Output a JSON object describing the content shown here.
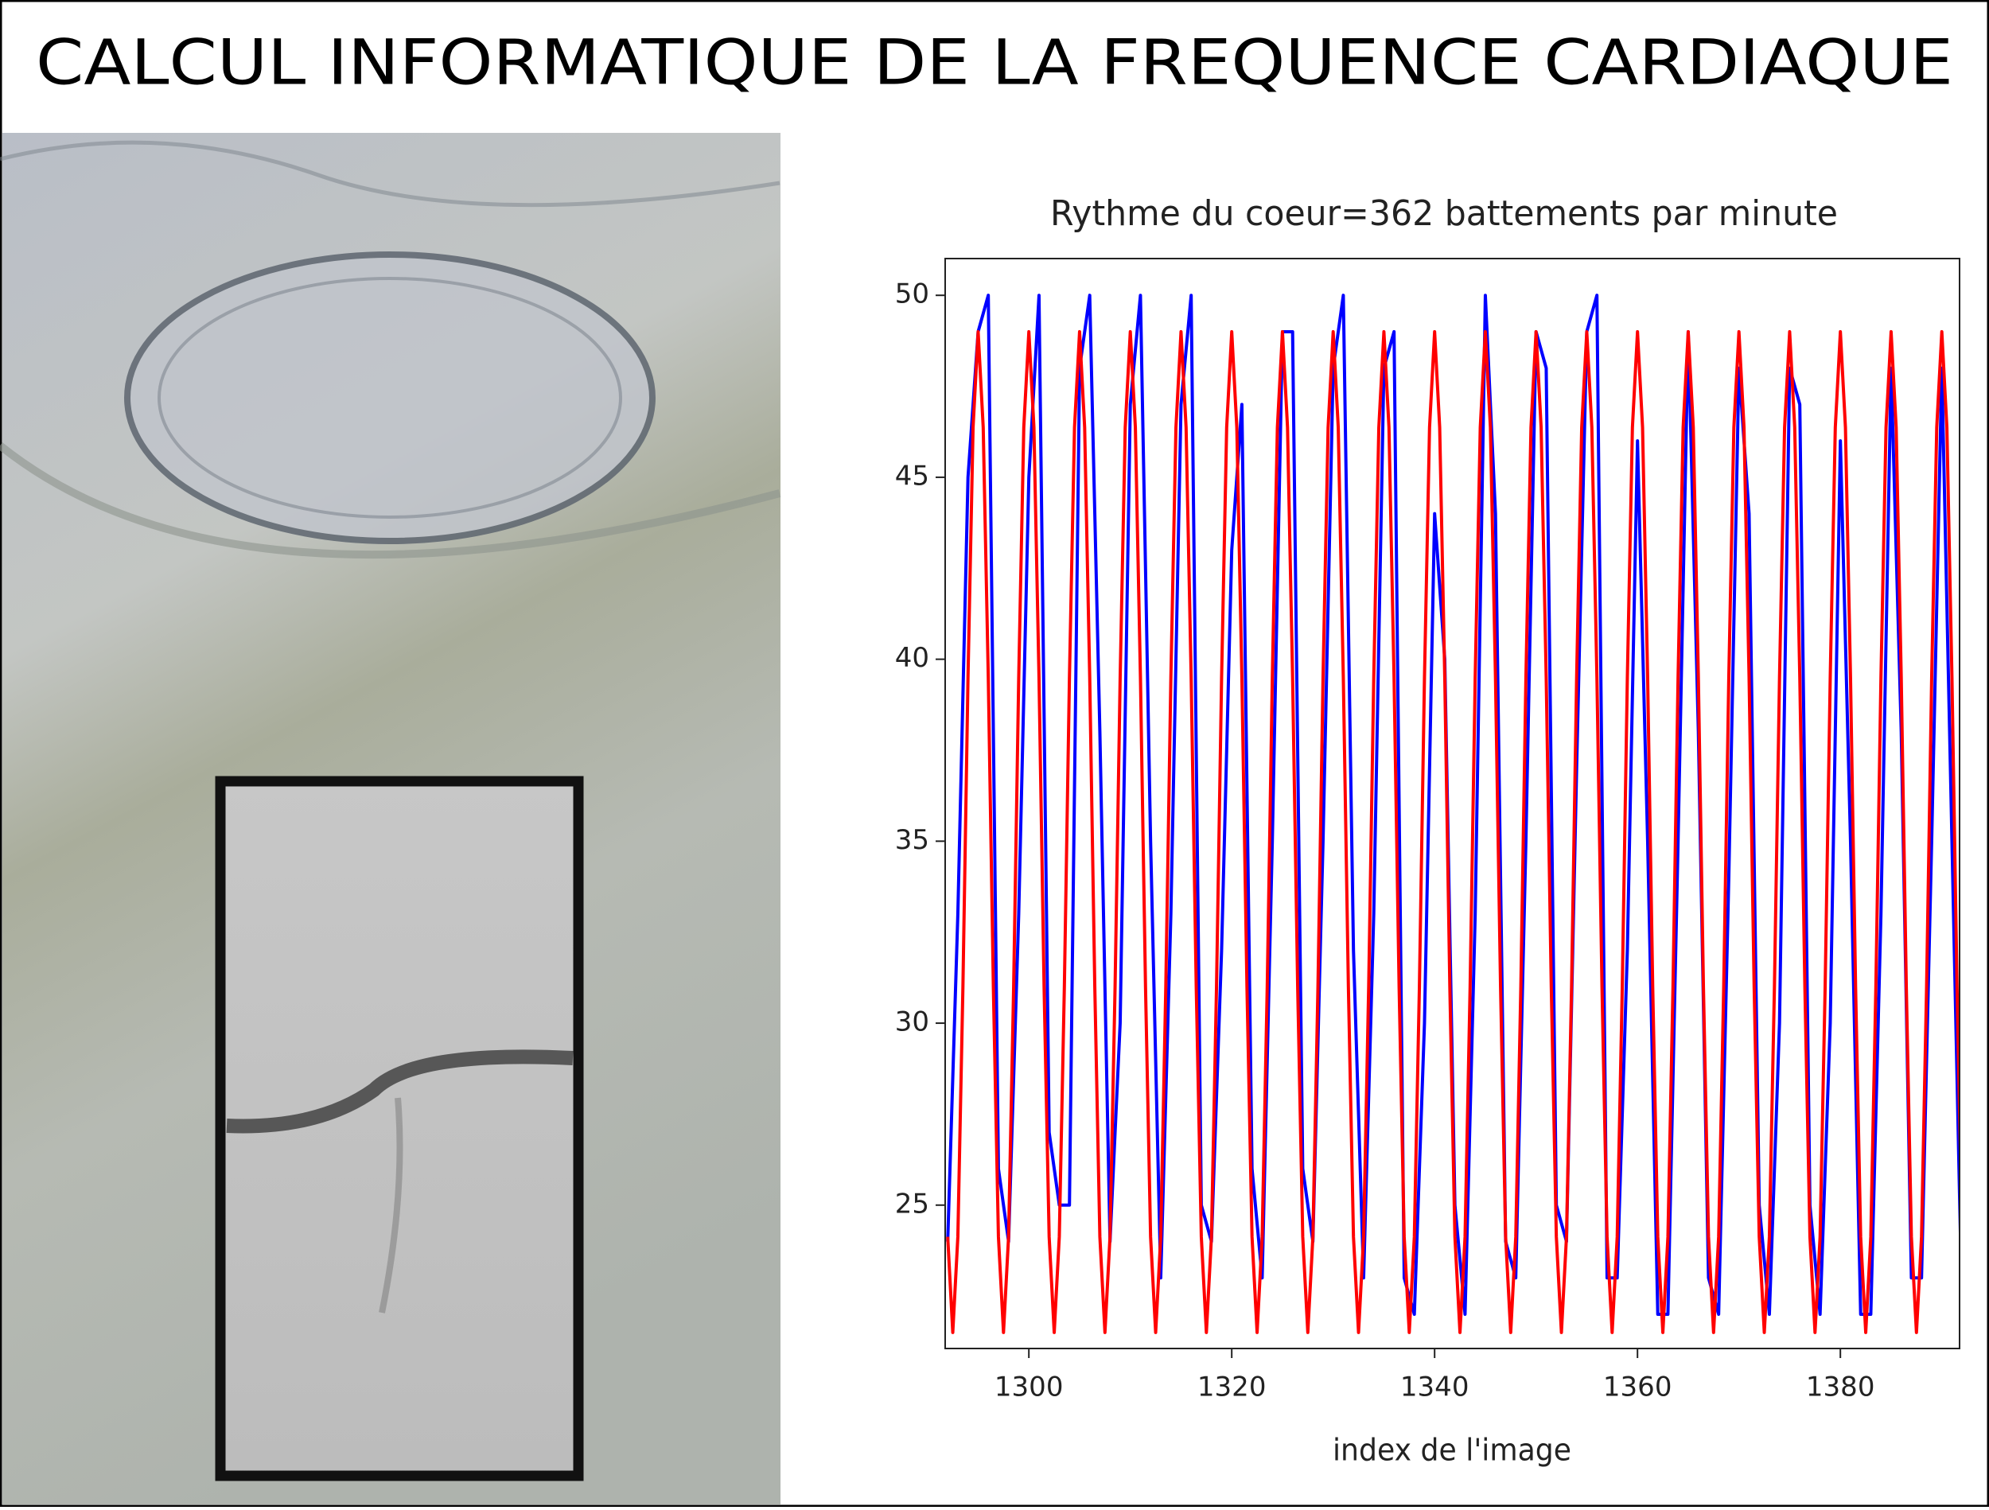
{
  "page_title": "CALCUL INFORMATIQUE DE LA FREQUENCE CARDIAQUE",
  "chart_data": {
    "type": "line",
    "title": "Rythme du coeur=362 battements par minute",
    "xlabel": "index de l'image",
    "xlim": [
      1291.75,
      1391.75
    ],
    "xticks": [
      1300,
      1320,
      1340,
      1360,
      1380
    ],
    "ylim": [
      21.06,
      51.01
    ],
    "yticks": [
      25,
      30,
      35,
      40,
      45,
      50
    ],
    "series": [
      {
        "color": "#0000ff",
        "x": [
          1292,
          1293,
          1294,
          1295,
          1296,
          1297,
          1298,
          1299,
          1300,
          1301,
          1302,
          1303,
          1304,
          1305,
          1306,
          1307,
          1308,
          1309,
          1310,
          1311,
          1312,
          1313,
          1314,
          1315,
          1316,
          1317,
          1318,
          1319,
          1320,
          1321,
          1322,
          1323,
          1324,
          1325,
          1326,
          1327,
          1328,
          1329,
          1330,
          1331,
          1332,
          1333,
          1334,
          1335,
          1336,
          1337,
          1338,
          1339,
          1340,
          1341,
          1342,
          1343,
          1344,
          1345,
          1346,
          1347,
          1348,
          1349,
          1350,
          1351,
          1352,
          1353,
          1354,
          1355,
          1356,
          1357,
          1358,
          1359,
          1360,
          1361,
          1362,
          1363,
          1364,
          1365,
          1366,
          1367,
          1368,
          1369,
          1370,
          1371,
          1372,
          1373,
          1374,
          1375,
          1376,
          1377,
          1378,
          1379,
          1380,
          1381,
          1382,
          1383,
          1384,
          1385,
          1386,
          1387,
          1388,
          1389,
          1390,
          1391,
          1392
        ],
        "values": [
          24,
          33,
          45,
          49,
          50,
          26,
          24,
          33,
          45,
          50,
          27,
          25,
          25,
          48,
          50,
          38,
          24,
          30,
          47,
          50,
          35,
          23,
          33,
          47,
          50,
          25,
          24,
          32,
          43,
          47,
          26,
          23,
          35,
          49,
          49,
          26,
          24,
          35,
          48,
          50,
          32,
          23,
          33,
          48,
          49,
          23,
          22,
          30,
          44,
          40,
          25,
          22,
          33,
          50,
          44,
          24,
          23,
          35,
          49,
          48,
          25,
          24,
          37,
          49,
          50,
          23,
          23,
          32,
          46,
          35,
          22,
          22,
          35,
          49,
          38,
          23,
          22,
          34,
          48,
          44,
          25,
          22,
          30,
          48,
          47,
          25,
          22,
          30,
          46,
          35,
          22,
          22,
          33,
          48,
          38,
          23,
          23,
          35,
          48,
          35,
          22
        ]
      },
      {
        "color": "#ff0000",
        "x": [
          1292,
          1292.5,
          1293,
          1293.5,
          1294,
          1294.5,
          1295,
          1295.5,
          1296,
          1296.5,
          1297,
          1297.5,
          1298,
          1298.5,
          1299,
          1299.5,
          1300,
          1300.5,
          1301,
          1301.5,
          1302,
          1302.5,
          1303,
          1303.5,
          1304,
          1304.5,
          1305,
          1305.5,
          1306,
          1306.5,
          1307,
          1307.5,
          1308,
          1308.5,
          1309,
          1309.5,
          1310,
          1310.5,
          1311,
          1311.5,
          1312,
          1312.5,
          1313,
          1313.5,
          1314,
          1314.5,
          1315,
          1315.5,
          1316,
          1316.5,
          1317,
          1317.5,
          1318,
          1318.5,
          1319,
          1319.5,
          1320,
          1320.5,
          1321,
          1321.5,
          1322,
          1322.5,
          1323,
          1323.5,
          1324,
          1324.5,
          1325,
          1325.5,
          1326,
          1326.5,
          1327,
          1327.5,
          1328,
          1328.5,
          1329,
          1329.5,
          1330,
          1330.5,
          1331,
          1331.5,
          1332,
          1332.5,
          1333,
          1333.5,
          1334,
          1334.5,
          1335,
          1335.5,
          1336,
          1336.5,
          1337,
          1337.5,
          1338,
          1338.5,
          1339,
          1339.5,
          1340,
          1340.5,
          1341,
          1341.5,
          1342,
          1342.5,
          1343,
          1343.5,
          1344,
          1344.5,
          1345,
          1345.5,
          1346,
          1346.5,
          1347,
          1347.5,
          1348,
          1348.5,
          1349,
          1349.5,
          1350,
          1350.5,
          1351,
          1351.5,
          1352,
          1352.5,
          1353,
          1353.5,
          1354,
          1354.5,
          1355,
          1355.5,
          1356,
          1356.5,
          1357,
          1357.5,
          1358,
          1358.5,
          1359,
          1359.5,
          1360,
          1360.5,
          1361,
          1361.5,
          1362,
          1362.5,
          1363,
          1363.5,
          1364,
          1364.5,
          1365,
          1365.5,
          1366,
          1366.5,
          1367,
          1367.5,
          1368,
          1368.5,
          1369,
          1369.5,
          1370,
          1370.5,
          1371,
          1371.5,
          1372,
          1372.5,
          1373,
          1373.5,
          1374,
          1374.5,
          1375,
          1375.5,
          1376,
          1376.5,
          1377,
          1377.5,
          1378,
          1378.5,
          1379,
          1379.5,
          1380,
          1380.5,
          1381,
          1381.5,
          1382,
          1382.5,
          1383,
          1383.5,
          1384,
          1384.5,
          1385,
          1385.5,
          1386,
          1386.5,
          1387,
          1387.5,
          1388,
          1388.5,
          1389,
          1389.5,
          1390,
          1390.5,
          1391,
          1391.5,
          1392
        ],
        "values": [
          24.13,
          21.5,
          24.13,
          31.0,
          39.5,
          46.37,
          49,
          46.37,
          39.5,
          31.0,
          24.13,
          21.5,
          24.13,
          31.0,
          39.5,
          46.37,
          49,
          46.37,
          39.5,
          31.0,
          24.13,
          21.5,
          24.13,
          31.0,
          39.5,
          46.37,
          49,
          46.37,
          39.5,
          31.0,
          24.13,
          21.5,
          24.13,
          31.0,
          39.5,
          46.37,
          49,
          46.37,
          39.5,
          31.0,
          24.13,
          21.5,
          24.13,
          31.0,
          39.5,
          46.37,
          49,
          46.37,
          39.5,
          31.0,
          24.13,
          21.5,
          24.13,
          31.0,
          39.5,
          46.37,
          49,
          46.37,
          39.5,
          31.0,
          24.13,
          21.5,
          24.13,
          31.0,
          39.5,
          46.37,
          49,
          46.37,
          39.5,
          31.0,
          24.13,
          21.5,
          24.13,
          31.0,
          39.5,
          46.37,
          49,
          46.37,
          39.5,
          31.0,
          24.13,
          21.5,
          24.13,
          31.0,
          39.5,
          46.37,
          49,
          46.37,
          39.5,
          31.0,
          24.13,
          21.5,
          24.13,
          31.0,
          39.5,
          46.37,
          49,
          46.37,
          39.5,
          31.0,
          24.13,
          21.5,
          24.13,
          31.0,
          39.5,
          46.37,
          49,
          46.37,
          39.5,
          31.0,
          24.13,
          21.5,
          24.13,
          31.0,
          39.5,
          46.37,
          49,
          46.37,
          39.5,
          31.0,
          24.13,
          21.5,
          24.13,
          31.0,
          39.5,
          46.37,
          49,
          46.37,
          39.5,
          31.0,
          24.13,
          21.5,
          24.13,
          31.0,
          39.5,
          46.37,
          49,
          46.37,
          39.5,
          31.0,
          24.13,
          21.5,
          24.13,
          31.0,
          39.5,
          46.37,
          49,
          46.37,
          39.5,
          31.0,
          24.13,
          21.5,
          24.13,
          31.0,
          39.5,
          46.37,
          49,
          46.37,
          39.5,
          31.0,
          24.13,
          21.5,
          24.13,
          31.0,
          39.5,
          46.37,
          49,
          46.37,
          39.5,
          31.0,
          24.13,
          21.5,
          24.13,
          31.0,
          39.5,
          46.37,
          49,
          46.37,
          39.5,
          31.0,
          24.13,
          21.5,
          24.13,
          31.0,
          39.5,
          46.37,
          49,
          46.37,
          39.5,
          31.0,
          24.13,
          21.5,
          24.13,
          31.0,
          39.5,
          46.37,
          49,
          46.37,
          39.5,
          31.0,
          24.13
        ]
      }
    ]
  }
}
